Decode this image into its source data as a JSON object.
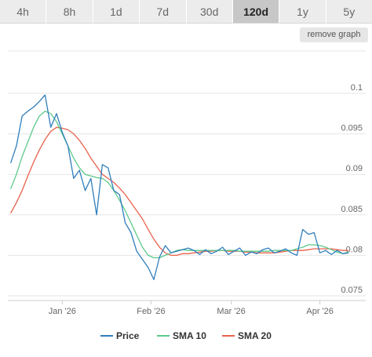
{
  "tabs": [
    {
      "label": "4h",
      "active": false
    },
    {
      "label": "8h",
      "active": false
    },
    {
      "label": "1d",
      "active": false
    },
    {
      "label": "7d",
      "active": false
    },
    {
      "label": "30d",
      "active": false
    },
    {
      "label": "120d",
      "active": true
    },
    {
      "label": "1y",
      "active": false
    },
    {
      "label": "5y",
      "active": false
    }
  ],
  "remove_graph_label": "remove graph",
  "chart_data": {
    "type": "line",
    "title": "",
    "xlabel": "",
    "ylabel": "",
    "ylim": [
      0.075,
      0.1
    ],
    "yticks": [
      0.075,
      0.08,
      0.085,
      0.09,
      0.095,
      0.1
    ],
    "ytick_labels": [
      "0.075",
      "0.08",
      "0.085",
      "0.09",
      "0.095",
      "0.1"
    ],
    "xtick_labels": [
      "Jan '26",
      "Feb '26",
      "Mar '26",
      "Apr '26"
    ],
    "xtick_dates": [
      "2026-01-01",
      "2026-02-01",
      "2026-03-01",
      "2026-04-01"
    ],
    "x": [
      "2025-12-14",
      "2025-12-16",
      "2025-12-18",
      "2025-12-20",
      "2025-12-22",
      "2025-12-24",
      "2025-12-26",
      "2025-12-28",
      "2025-12-30",
      "2026-01-01",
      "2026-01-03",
      "2026-01-05",
      "2026-01-07",
      "2026-01-09",
      "2026-01-11",
      "2026-01-13",
      "2026-01-15",
      "2026-01-17",
      "2026-01-19",
      "2026-01-21",
      "2026-01-23",
      "2026-01-25",
      "2026-01-27",
      "2026-01-29",
      "2026-01-31",
      "2026-02-02",
      "2026-02-04",
      "2026-02-06",
      "2026-02-08",
      "2026-02-10",
      "2026-02-12",
      "2026-02-14",
      "2026-02-16",
      "2026-02-18",
      "2026-02-20",
      "2026-02-22",
      "2026-02-24",
      "2026-02-26",
      "2026-02-28",
      "2026-03-02",
      "2026-03-04",
      "2026-03-06",
      "2026-03-08",
      "2026-03-10",
      "2026-03-12",
      "2026-03-14",
      "2026-03-16",
      "2026-03-18",
      "2026-03-20",
      "2026-03-22",
      "2026-03-24",
      "2026-03-26",
      "2026-03-28",
      "2026-03-30",
      "2026-04-01",
      "2026-04-03",
      "2026-04-05",
      "2026-04-07",
      "2026-04-09",
      "2026-04-11"
    ],
    "series": [
      {
        "name": "Price",
        "color": "#2f7ebc",
        "values": [
          0.0914,
          0.0935,
          0.0972,
          0.0978,
          0.0983,
          0.099,
          0.0998,
          0.0958,
          0.0975,
          0.0952,
          0.0935,
          0.0895,
          0.0905,
          0.088,
          0.0895,
          0.085,
          0.0912,
          0.0908,
          0.088,
          0.0875,
          0.084,
          0.0828,
          0.0805,
          0.0795,
          0.0785,
          0.077,
          0.0798,
          0.0812,
          0.0803,
          0.0805,
          0.0807,
          0.0809,
          0.0806,
          0.0801,
          0.0807,
          0.0802,
          0.0805,
          0.081,
          0.0801,
          0.0805,
          0.0809,
          0.08,
          0.0804,
          0.0802,
          0.0807,
          0.0809,
          0.0803,
          0.0805,
          0.0808,
          0.0803,
          0.08,
          0.0832,
          0.0826,
          0.0828,
          0.0803,
          0.0806,
          0.0801,
          0.0806,
          0.0802,
          0.0803
        ]
      },
      {
        "name": "SMA 10",
        "color": "#5cc98a",
        "values": [
          0.0882,
          0.09,
          0.0922,
          0.094,
          0.0958,
          0.0972,
          0.0978,
          0.0975,
          0.0965,
          0.095,
          0.0935,
          0.092,
          0.0908,
          0.09,
          0.0898,
          0.0896,
          0.0895,
          0.089,
          0.088,
          0.0868,
          0.0855,
          0.084,
          0.0825,
          0.081,
          0.08,
          0.0797,
          0.0797,
          0.08,
          0.0803,
          0.0806,
          0.0807,
          0.0806,
          0.0806,
          0.0806,
          0.0806,
          0.0806,
          0.0806,
          0.0806,
          0.0806,
          0.0806,
          0.0805,
          0.0805,
          0.0805,
          0.0805,
          0.0805,
          0.0805,
          0.0806,
          0.0806,
          0.0806,
          0.0806,
          0.0808,
          0.081,
          0.0813,
          0.0813,
          0.0812,
          0.081,
          0.0807,
          0.0804,
          0.0802,
          0.0804
        ]
      },
      {
        "name": "SMA 20",
        "color": "#e9614c",
        "values": [
          0.0852,
          0.0865,
          0.088,
          0.0898,
          0.0915,
          0.093,
          0.0943,
          0.0953,
          0.0958,
          0.0957,
          0.0955,
          0.095,
          0.0942,
          0.0932,
          0.092,
          0.091,
          0.09,
          0.0895,
          0.089,
          0.0883,
          0.0875,
          0.0865,
          0.0855,
          0.0845,
          0.0832,
          0.082,
          0.081,
          0.0803,
          0.08,
          0.08,
          0.0802,
          0.0802,
          0.0803,
          0.0804,
          0.0805,
          0.0805,
          0.0806,
          0.0806,
          0.0805,
          0.0805,
          0.0805,
          0.0804,
          0.0804,
          0.0803,
          0.0803,
          0.0803,
          0.0803,
          0.0804,
          0.0805,
          0.0806,
          0.0806,
          0.0806,
          0.0807,
          0.0808,
          0.0808,
          0.0808,
          0.0808,
          0.0807,
          0.0806,
          0.0806
        ]
      }
    ],
    "grid": "horizontal",
    "legend": "bottom"
  }
}
